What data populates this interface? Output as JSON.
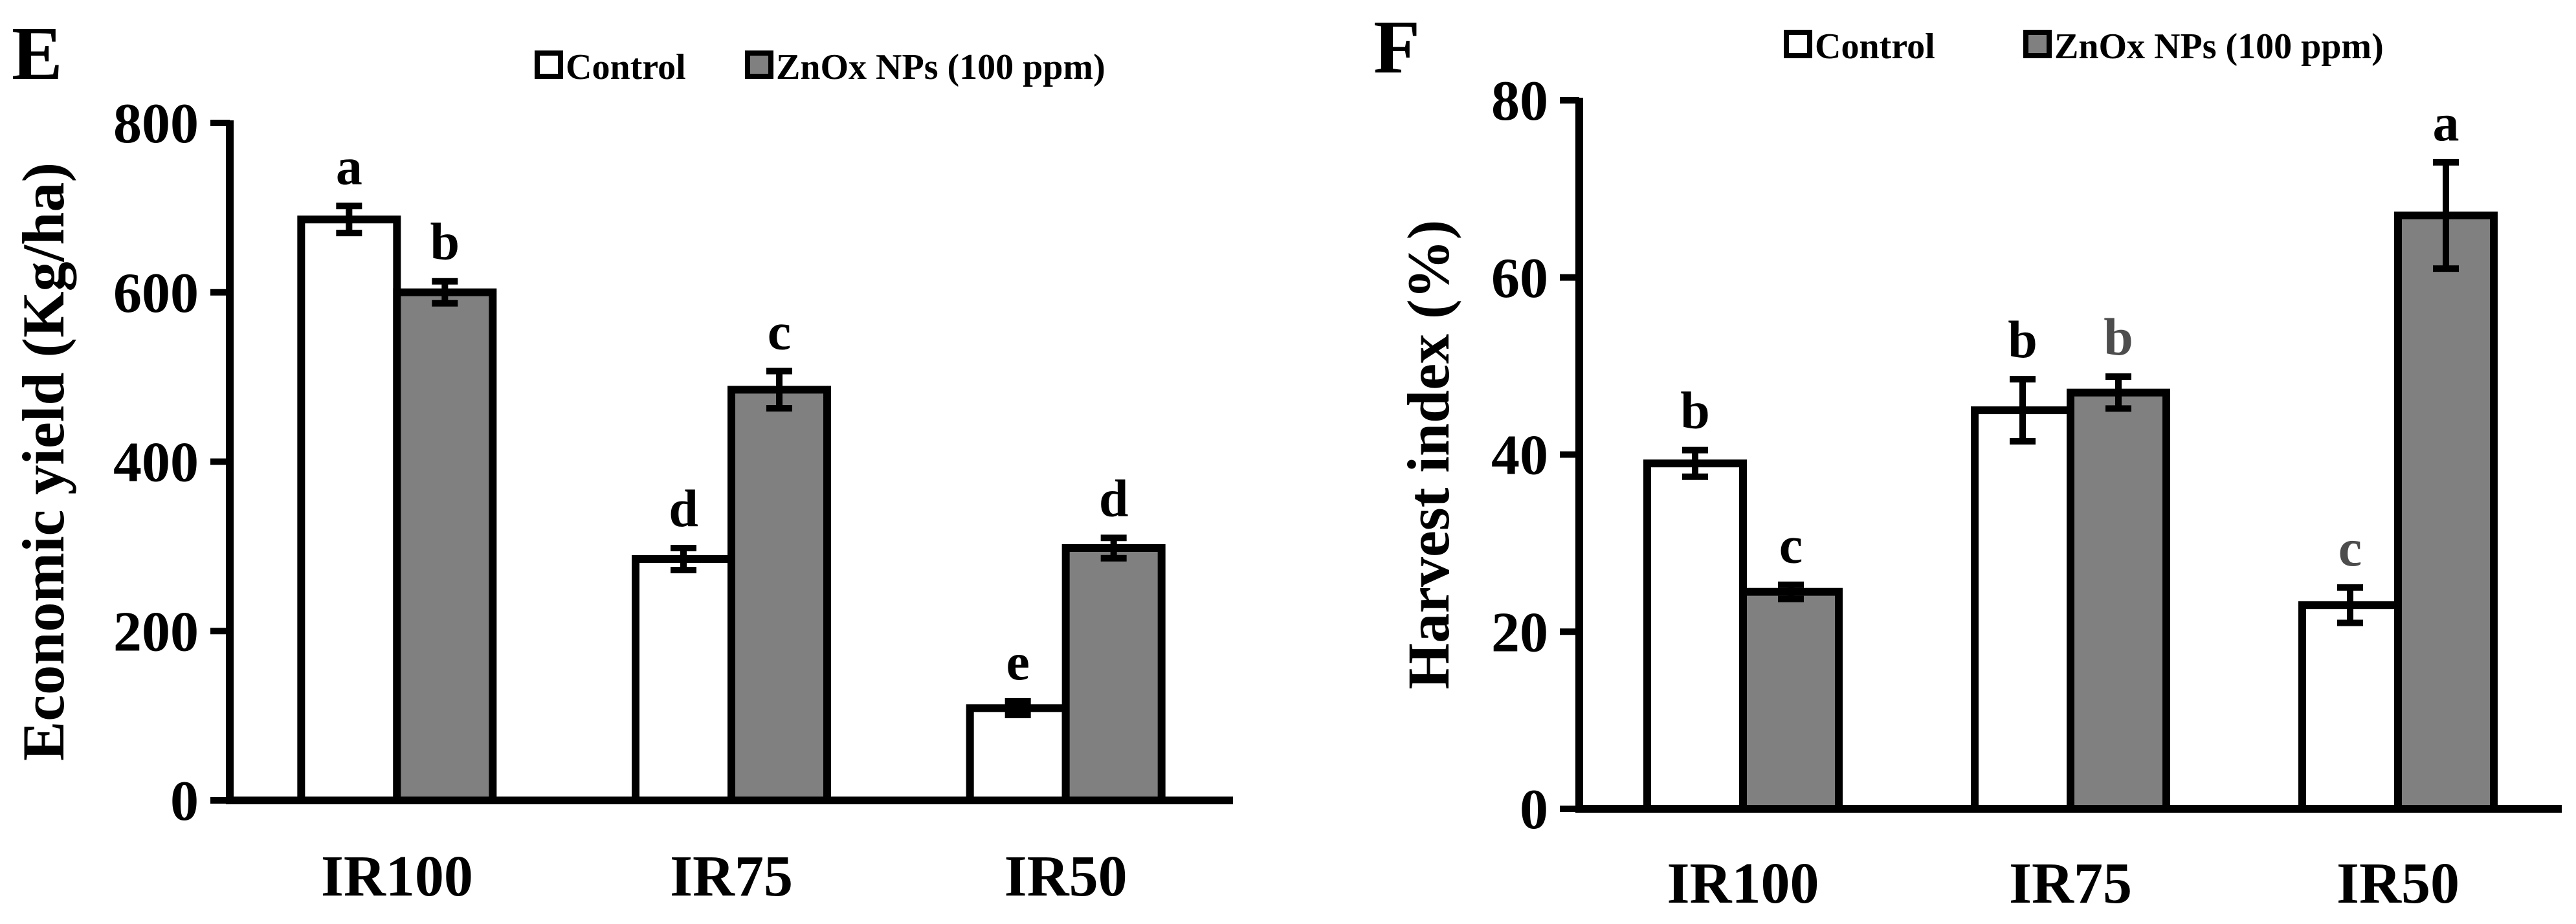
{
  "colors": {
    "control_fill": "#ffffff",
    "treatment_fill": "#808080",
    "stroke": "#000000",
    "gray_label": "#4d4d4d"
  },
  "chart_data": [
    {
      "type": "bar",
      "panel": "E",
      "title": "",
      "categories": [
        "IR100",
        "IR75",
        "IR50"
      ],
      "series": [
        {
          "name": "Control",
          "values": [
            686,
            285,
            109
          ],
          "errors": [
            16,
            13,
            8
          ],
          "labels": [
            "a",
            "d",
            "e"
          ]
        },
        {
          "name": "ZnOx NPs (100 ppm)",
          "values": [
            600,
            485,
            298
          ],
          "errors": [
            13,
            22,
            12
          ],
          "labels": [
            "b",
            "c",
            "d"
          ]
        }
      ],
      "xlabel": "",
      "ylabel": "Economic yield (Kg/ha)",
      "ylim": [
        0,
        800
      ],
      "yticks": [
        0,
        200,
        400,
        600,
        800
      ],
      "grid": false,
      "legend": "top-center"
    },
    {
      "type": "bar",
      "panel": "F",
      "title": "",
      "categories": [
        "IR100",
        "IR75",
        "IR50"
      ],
      "series": [
        {
          "name": "Control",
          "values": [
            39,
            45,
            23
          ],
          "errors": [
            1.5,
            3.5,
            2
          ],
          "labels": [
            "b",
            "b",
            "c"
          ]
        },
        {
          "name": "ZnOx NPs (100 ppm)",
          "values": [
            24.5,
            47,
            67
          ],
          "errors": [
            0.8,
            1.8,
            6
          ],
          "labels": [
            "c",
            "b",
            "a"
          ]
        }
      ],
      "xlabel": "",
      "ylabel": "Harvest index (%)",
      "ylim": [
        0,
        80
      ],
      "yticks": [
        0,
        20,
        40,
        60,
        80
      ],
      "grid": false,
      "legend": "top-center"
    }
  ]
}
